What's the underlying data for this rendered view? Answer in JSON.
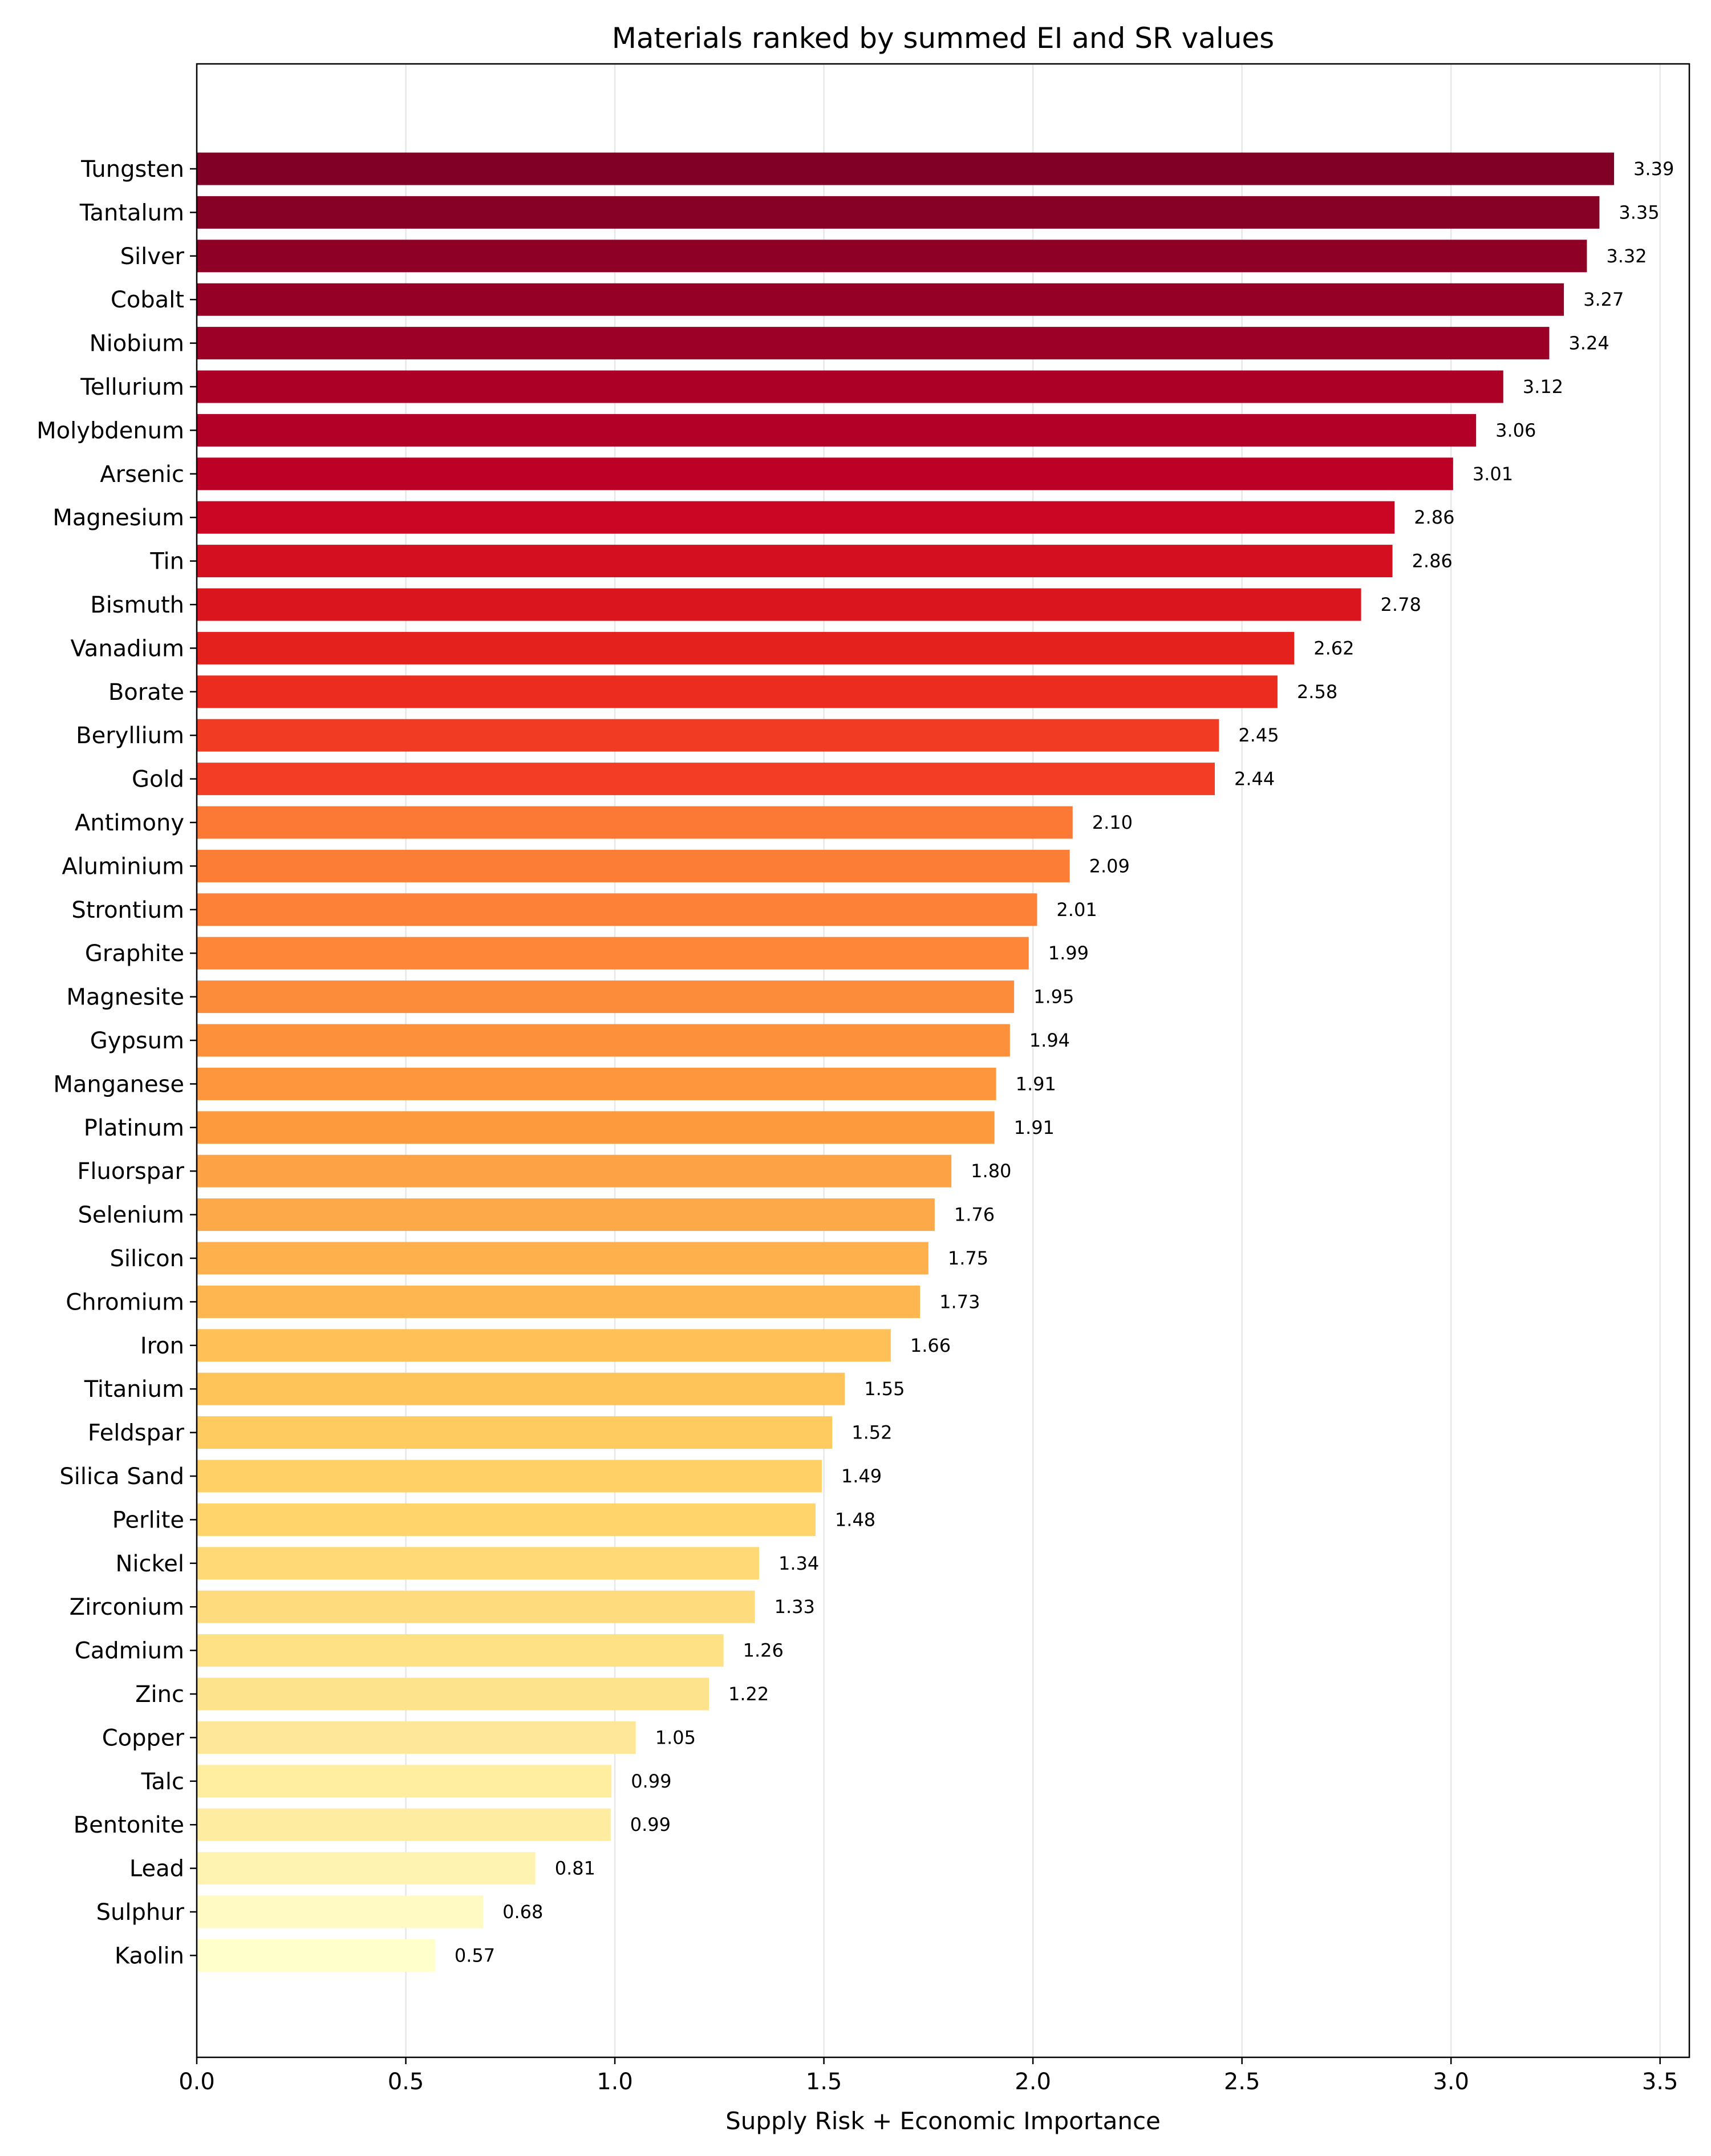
{
  "chart_data": {
    "type": "bar",
    "orientation": "horizontal",
    "title": "Materials ranked by summed EI and SR values",
    "xlabel": "Supply Risk + Economic Importance",
    "ylabel": "",
    "xlim": [
      0,
      3.57
    ],
    "xticks": [
      0.0,
      0.5,
      1.0,
      1.5,
      2.0,
      2.5,
      3.0,
      3.5
    ],
    "xtick_labels": [
      "0.0",
      "0.5",
      "1.0",
      "1.5",
      "2.0",
      "2.5",
      "3.0",
      "3.5"
    ],
    "grid": "vertical",
    "colormap": "YlOrRd",
    "categories": [
      "Tungsten",
      "Tantalum",
      "Silver",
      "Cobalt",
      "Niobium",
      "Tellurium",
      "Molybdenum",
      "Arsenic",
      "Magnesium",
      "Tin",
      "Bismuth",
      "Vanadium",
      "Borate",
      "Beryllium",
      "Gold",
      "Antimony",
      "Aluminium",
      "Strontium",
      "Graphite",
      "Magnesite",
      "Gypsum",
      "Manganese",
      "Platinum",
      "Fluorspar",
      "Selenium",
      "Silicon",
      "Chromium",
      "Iron",
      "Titanium",
      "Feldspar",
      "Silica Sand",
      "Perlite",
      "Nickel",
      "Zirconium",
      "Cadmium",
      "Zinc",
      "Copper",
      "Talc",
      "Bentonite",
      "Lead",
      "Sulphur",
      "Kaolin"
    ],
    "values": [
      3.39,
      3.355,
      3.325,
      3.27,
      3.235,
      3.125,
      3.06,
      3.005,
      2.865,
      2.86,
      2.785,
      2.625,
      2.585,
      2.445,
      2.435,
      2.095,
      2.088,
      2.01,
      1.99,
      1.955,
      1.945,
      1.912,
      1.908,
      1.805,
      1.765,
      1.75,
      1.73,
      1.66,
      1.55,
      1.52,
      1.495,
      1.48,
      1.345,
      1.335,
      1.26,
      1.225,
      1.05,
      0.992,
      0.99,
      0.81,
      0.685,
      0.57
    ],
    "labels": [
      "3.39",
      "3.35",
      "3.32",
      "3.27",
      "3.24",
      "3.12",
      "3.06",
      "3.01",
      "2.86",
      "2.86",
      "2.78",
      "2.62",
      "2.58",
      "2.45",
      "2.44",
      "2.10",
      "2.09",
      "2.01",
      "1.99",
      "1.95",
      "1.94",
      "1.91",
      "1.91",
      "1.80",
      "1.76",
      "1.75",
      "1.73",
      "1.66",
      "1.55",
      "1.52",
      "1.49",
      "1.48",
      "1.34",
      "1.33",
      "1.26",
      "1.22",
      "1.05",
      "0.99",
      "0.99",
      "0.81",
      "0.68",
      "0.57"
    ],
    "colors": [
      "#800026",
      "#870026",
      "#8e0026",
      "#950026",
      "#9d0026",
      "#ac0026",
      "#b30026",
      "#bd0026",
      "#cb0625",
      "#d30f20",
      "#db151e",
      "#e4211d",
      "#ec2c1f",
      "#f23b23",
      "#f43d25",
      "#fc7835",
      "#fc7d36",
      "#fd8136",
      "#fd8638",
      "#fd8c3a",
      "#fd913b",
      "#fd963c",
      "#fd9a3e",
      "#fda245",
      "#fea949",
      "#feb04d",
      "#feb750",
      "#fec057",
      "#fec45a",
      "#fecb61",
      "#fed065",
      "#fed46b",
      "#fed976",
      "#fedc7d",
      "#fee085",
      "#fee38d",
      "#fee799",
      "#ffeda0",
      "#feeda0",
      "#fff3b2",
      "#fff9c4",
      "#ffffcc"
    ]
  }
}
